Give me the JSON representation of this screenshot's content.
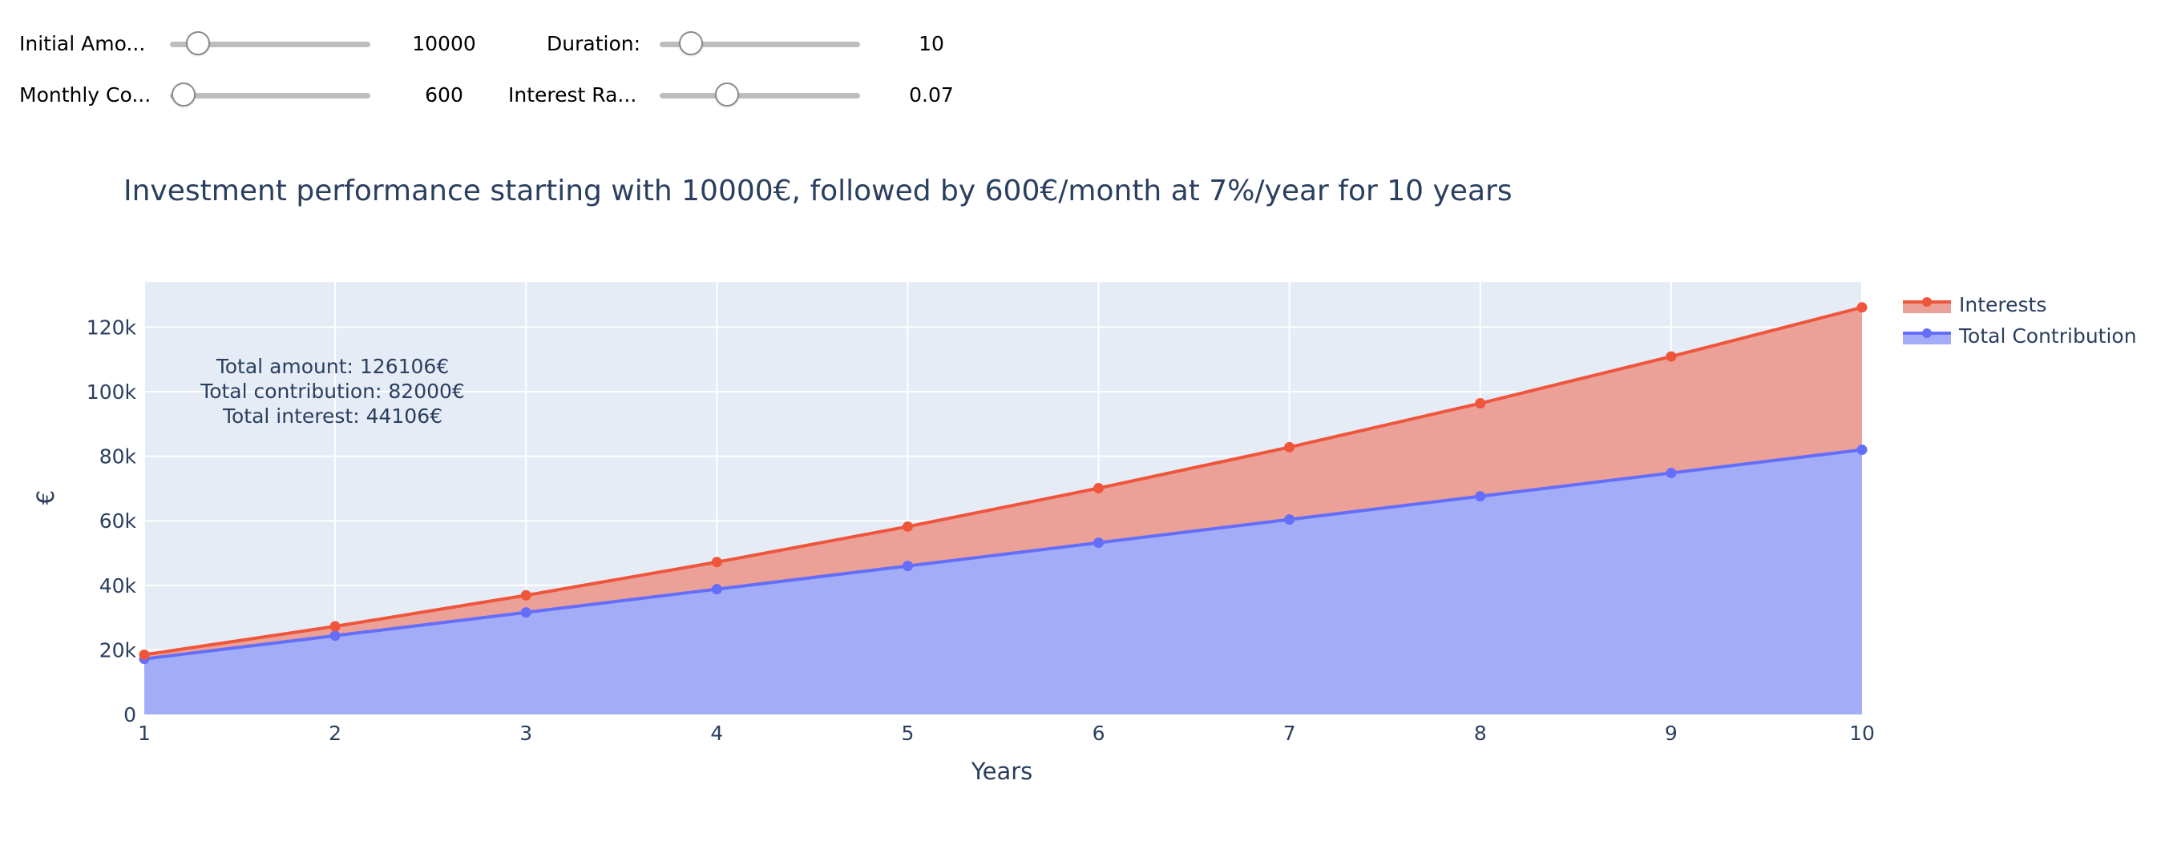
{
  "controls": [
    {
      "label": "Initial Amo...",
      "value": "10000",
      "min": 1000,
      "max": 100000,
      "current": 10000
    },
    {
      "label": "Duration:",
      "value": "10",
      "min": 5,
      "max": 50,
      "current": 10
    },
    {
      "label": "Monthly Co...",
      "value": "600",
      "min": 500,
      "max": 10000,
      "current": 600
    },
    {
      "label": "Interest Ra...",
      "value": "0.07",
      "min": 0.01,
      "max": 0.2,
      "current": 0.07
    }
  ],
  "chart_data": {
    "type": "area",
    "title": "Investment performance starting with 10000€, followed by 600€/month at 7%/year for 10 years",
    "xlabel": "Years",
    "ylabel": "€",
    "x": [
      1,
      2,
      3,
      4,
      5,
      6,
      7,
      8,
      9,
      10
    ],
    "xlim": [
      1,
      10
    ],
    "ylim": [
      0,
      134000
    ],
    "x_ticks": [
      "1",
      "2",
      "3",
      "4",
      "5",
      "6",
      "7",
      "8",
      "9",
      "10"
    ],
    "y_tick_values": [
      0,
      20000,
      40000,
      60000,
      80000,
      100000,
      120000
    ],
    "y_tick_labels": [
      "0",
      "20k",
      "40k",
      "60k",
      "80k",
      "100k",
      "120k"
    ],
    "grid": true,
    "legend_position": "top-right",
    "series": [
      {
        "name": "Interests",
        "color": "#ef553b",
        "values": [
          18500,
          27300,
          36900,
          47200,
          58200,
          70100,
          82800,
          96400,
          110900,
          126106
        ]
      },
      {
        "name": "Total Contribution",
        "color": "#636efa",
        "values": [
          17200,
          24400,
          31600,
          38800,
          46000,
          53200,
          60400,
          67600,
          74800,
          82000
        ]
      }
    ],
    "annotations": [
      "Total amount: 126106€",
      "Total contribution: 82000€",
      "Total interest: 44106€"
    ]
  },
  "colors": {
    "plot_bg": "#e5ecf6",
    "grid": "#ffffff",
    "text": "#2a3f5f",
    "interests_fill": "#eba098",
    "contribution_fill": "#a3acf7"
  }
}
